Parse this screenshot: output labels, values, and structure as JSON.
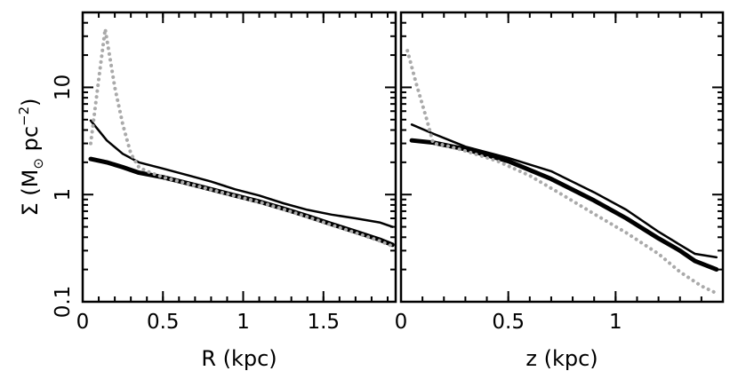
{
  "chart_data": [
    {
      "type": "line",
      "panel": "left",
      "xlabel": "R (kpc)",
      "ylabel_parts": {
        "main": "Σ (M",
        "sub": "⊙",
        "mid": " pc",
        "sup": "−2",
        "end": ")"
      },
      "xlim": [
        0,
        1.95
      ],
      "ylim": [
        0.1,
        50
      ],
      "yscale": "log",
      "x_ticks": [
        0,
        0.5,
        1,
        1.5
      ],
      "x_tick_labels": [
        "0",
        "0.5",
        "1",
        "1.5"
      ],
      "y_ticks": [
        0.1,
        1,
        10
      ],
      "y_tick_labels": [
        "0.1",
        "1",
        "10"
      ],
      "series": [
        {
          "style": "thin-black",
          "color": "#000000",
          "x": [
            0.05,
            0.15,
            0.25,
            0.35,
            0.5,
            0.65,
            0.8,
            0.95,
            1.1,
            1.25,
            1.4,
            1.55,
            1.7,
            1.85,
            1.93
          ],
          "y": [
            4.9,
            3.2,
            2.4,
            2.0,
            1.75,
            1.52,
            1.32,
            1.12,
            0.98,
            0.83,
            0.72,
            0.65,
            0.6,
            0.55,
            0.5
          ]
        },
        {
          "style": "thick-black",
          "color": "#000000",
          "x": [
            0.05,
            0.15,
            0.25,
            0.35,
            0.5,
            0.65,
            0.8,
            0.95,
            1.1,
            1.25,
            1.4,
            1.55,
            1.7,
            1.85,
            1.93
          ],
          "y": [
            2.15,
            2.0,
            1.8,
            1.6,
            1.45,
            1.28,
            1.12,
            0.98,
            0.86,
            0.74,
            0.63,
            0.53,
            0.45,
            0.38,
            0.34
          ]
        },
        {
          "style": "grey-dotted",
          "color": "#aaaaaa",
          "x": [
            0.05,
            0.1,
            0.14,
            0.2,
            0.25,
            0.3,
            0.35,
            0.4,
            0.5,
            0.65,
            0.8,
            0.95,
            1.1,
            1.25,
            1.4,
            1.55,
            1.7,
            1.85,
            1.93
          ],
          "y": [
            3.0,
            12,
            35,
            10,
            4.5,
            2.4,
            1.8,
            1.65,
            1.45,
            1.27,
            1.11,
            0.97,
            0.85,
            0.73,
            0.62,
            0.52,
            0.44,
            0.37,
            0.33
          ]
        }
      ]
    },
    {
      "type": "line",
      "panel": "right",
      "xlabel": "z (kpc)",
      "xlim": [
        0,
        1.5
      ],
      "ylim": [
        0.1,
        50
      ],
      "yscale": "log",
      "x_ticks": [
        0,
        0.5,
        1
      ],
      "x_tick_labels": [
        "0",
        "0.5",
        "1"
      ],
      "y_ticks": [
        0.1,
        1,
        10
      ],
      "series": [
        {
          "style": "thin-black",
          "color": "#000000",
          "x": [
            0.05,
            0.15,
            0.3,
            0.5,
            0.7,
            0.9,
            1.05,
            1.2,
            1.3,
            1.37,
            1.47
          ],
          "y": [
            4.5,
            3.7,
            2.8,
            2.2,
            1.65,
            1.05,
            0.72,
            0.45,
            0.34,
            0.28,
            0.26
          ]
        },
        {
          "style": "thick-black",
          "color": "#000000",
          "x": [
            0.05,
            0.15,
            0.3,
            0.5,
            0.7,
            0.9,
            1.05,
            1.2,
            1.3,
            1.37,
            1.47
          ],
          "y": [
            3.2,
            3.05,
            2.65,
            2.05,
            1.4,
            0.88,
            0.6,
            0.39,
            0.3,
            0.24,
            0.2
          ]
        },
        {
          "style": "grey-dotted",
          "color": "#aaaaaa",
          "x": [
            0.03,
            0.07,
            0.12,
            0.15,
            0.2,
            0.3,
            0.45,
            0.6,
            0.75,
            0.9,
            1.05,
            1.2,
            1.3,
            1.4,
            1.47
          ],
          "y": [
            22,
            11,
            5.0,
            3.0,
            2.9,
            2.55,
            2.05,
            1.5,
            1.0,
            0.66,
            0.44,
            0.28,
            0.19,
            0.14,
            0.12
          ]
        }
      ]
    }
  ]
}
